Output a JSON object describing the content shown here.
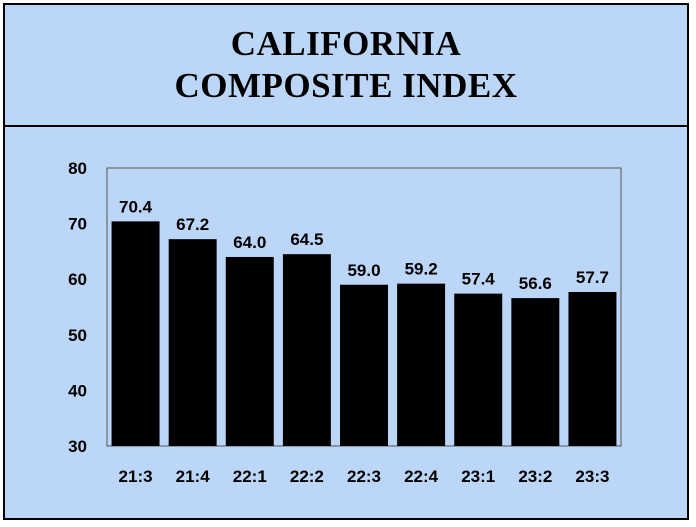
{
  "title_lines": [
    "CALIFORNIA",
    "COMPOSITE INDEX"
  ],
  "colors": {
    "background": "#bcd6f7",
    "bar": "#000000",
    "border": "#000000"
  },
  "chart_data": {
    "type": "bar",
    "title": "CALIFORNIA COMPOSITE INDEX",
    "categories": [
      "21:3",
      "21:4",
      "22:1",
      "22:2",
      "22:3",
      "22:4",
      "23:1",
      "23:2",
      "23:3"
    ],
    "values": [
      70.4,
      67.2,
      64.0,
      64.5,
      59.0,
      59.2,
      57.4,
      56.6,
      57.7
    ],
    "data_labels": [
      "70.4",
      "67.2",
      "64.0",
      "64.5",
      "59.0",
      "59.2",
      "57.4",
      "56.6",
      "57.7"
    ],
    "yticks": [
      30,
      40,
      50,
      60,
      70,
      80
    ],
    "xlabel": "",
    "ylabel": "",
    "ylim": [
      30,
      80
    ],
    "grid": false,
    "legend": "none"
  }
}
